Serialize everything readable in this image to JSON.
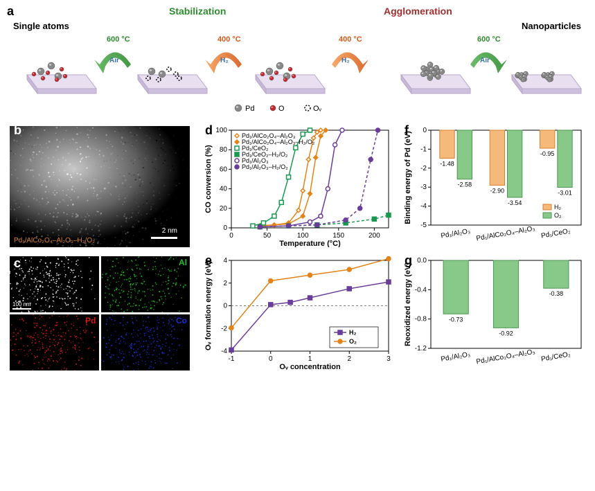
{
  "panel_a": {
    "label": "a",
    "title_stabilization": "Stabilization",
    "title_agglomeration": "Agglomeration",
    "label_single_atoms": "Single atoms",
    "label_nanoparticles": "Nanoparticles",
    "stages": [
      {
        "temp": "600 °C",
        "temp_color": "#2e8b2e",
        "gas": "Air",
        "arrow_gradient": [
          "#5ab45a",
          "#2e8b2e"
        ],
        "dir": "left"
      },
      {
        "temp": "400 °C",
        "temp_color": "#d55a1a",
        "gas": "H₂",
        "arrow_gradient": [
          "#f5a05a",
          "#d55a1a"
        ],
        "dir": "left"
      },
      {
        "temp": "400 °C",
        "temp_color": "#d55a1a",
        "gas": "H₂",
        "arrow_gradient": [
          "#f5a05a",
          "#d55a1a"
        ],
        "dir": "right"
      },
      {
        "temp": "600 °C",
        "temp_color": "#2e8b2e",
        "gas": "Air",
        "arrow_gradient": [
          "#5ab45a",
          "#2e8b2e"
        ],
        "dir": "right"
      }
    ],
    "legend": {
      "pd": "Pd",
      "o": "O",
      "ov": "Oᵥ"
    },
    "platform_fill": "#e8dff0",
    "platform_stroke": "#b8a8c8",
    "atom_pd_color": "#888888",
    "atom_o_color": "#c8262e",
    "atom_ov_stroke": "#000000"
  },
  "panel_b": {
    "label": "b",
    "scale_text": "2 nm",
    "caption": "Pd₁/AlCo₂O₄–Al₂O₃–H₂/O₂"
  },
  "panel_c": {
    "label": "c",
    "scale_text": "100 nm",
    "maps": [
      {
        "tag": "",
        "color": "#ffffff"
      },
      {
        "tag": "Al",
        "color": "#20c020"
      },
      {
        "tag": "Pd",
        "color": "#d01818"
      },
      {
        "tag": "Co",
        "color": "#1830d0"
      }
    ]
  },
  "panel_d": {
    "label": "d",
    "xlabel": "Temperature (°C)",
    "ylabel": "CO conversion (%)",
    "xlim": [
      0,
      220
    ],
    "ylim": [
      0,
      100
    ],
    "xticks": [
      0,
      50,
      100,
      150,
      200
    ],
    "yticks": [
      0,
      20,
      40,
      60,
      80,
      100
    ],
    "series": [
      {
        "name": "Pd₁/AlCo₂O₄–Al₂O₃",
        "color": "#e2841a",
        "marker": "diamond",
        "fill": false,
        "dash": false,
        "x": [
          40,
          60,
          80,
          94,
          100,
          108,
          115,
          120,
          125
        ],
        "y": [
          2,
          3,
          5,
          18,
          38,
          70,
          92,
          98,
          100
        ]
      },
      {
        "name": "Pd₁/AlCo₂O₄–Al₂O₃–H₂/O₂",
        "color": "#e2841a",
        "marker": "diamond",
        "fill": true,
        "dash": false,
        "x": [
          40,
          60,
          80,
          100,
          110,
          118,
          125,
          132
        ],
        "y": [
          2,
          3,
          4,
          12,
          35,
          72,
          94,
          100
        ]
      },
      {
        "name": "Pd₁/CeO₂",
        "color": "#1a9850",
        "marker": "square",
        "fill": false,
        "dash": false,
        "x": [
          30,
          45,
          60,
          70,
          80,
          90,
          100,
          110
        ],
        "y": [
          2,
          5,
          12,
          26,
          52,
          82,
          96,
          100
        ]
      },
      {
        "name": "Pd₁/CeO₂–H₂/O₂",
        "color": "#1a9850",
        "marker": "square",
        "fill": true,
        "dash": true,
        "x": [
          40,
          80,
          120,
          160,
          200,
          220
        ],
        "y": [
          1,
          2,
          3,
          5,
          9,
          13
        ]
      },
      {
        "name": "Pd₁/Al₂O₃",
        "color": "#6a3d9a",
        "marker": "circle",
        "fill": false,
        "dash": false,
        "x": [
          40,
          80,
          110,
          125,
          135,
          145,
          155
        ],
        "y": [
          1,
          2,
          6,
          12,
          40,
          85,
          100
        ]
      },
      {
        "name": "Pd₁/Al₂O₃–H₂/O₂",
        "color": "#6a3d9a",
        "marker": "circle",
        "fill": true,
        "dash": true,
        "x": [
          40,
          80,
          120,
          160,
          180,
          195,
          205
        ],
        "y": [
          1,
          2,
          3,
          8,
          20,
          70,
          100
        ]
      }
    ]
  },
  "panel_e": {
    "label": "e",
    "xlabel": "Oᵥ concentration",
    "ylabel": "Oᵥ formation energy (eV)",
    "xlim": [
      -1,
      3
    ],
    "ylim": [
      -4,
      4
    ],
    "xticks": [
      -1,
      0,
      1,
      2,
      3
    ],
    "yticks": [
      -4,
      -2,
      0,
      2,
      4
    ],
    "zero_line_color": "#808080",
    "series": [
      {
        "name": "H₂",
        "color": "#6a3d9a",
        "marker": "square",
        "x": [
          -1,
          0,
          0.5,
          1,
          2,
          3
        ],
        "y": [
          -3.9,
          0.1,
          0.3,
          0.7,
          1.5,
          2.1
        ]
      },
      {
        "name": "O₂",
        "color": "#e2841a",
        "marker": "circle",
        "x": [
          -1,
          0,
          1,
          2,
          3
        ],
        "y": [
          -1.95,
          2.2,
          2.7,
          3.2,
          4.15
        ]
      }
    ]
  },
  "panel_f": {
    "label": "f",
    "xlabel_items": [
      "Pd₁/Al₂O₃",
      "Pd₁/AlCo₂O₄–Al₂O₃",
      "Pd₁/CeO₂"
    ],
    "ylabel": "Binding energy of Pd (eV)",
    "ylim": [
      -5,
      0
    ],
    "yticks": [
      -5,
      -4,
      -3,
      -2,
      -1,
      0
    ],
    "bar_width": 0.35,
    "legend": {
      "h2": "H₂",
      "o2": "O₂"
    },
    "colors": {
      "h2": "#f5b97a",
      "o2": "#88c888",
      "h2_stroke": "#d88030",
      "o2_stroke": "#4a9850"
    },
    "data": [
      {
        "h2": -1.48,
        "o2": -2.58
      },
      {
        "h2": -2.9,
        "o2": -3.54
      },
      {
        "h2": -0.95,
        "o2": -3.01
      }
    ]
  },
  "panel_g": {
    "label": "g",
    "xlabel_items": [
      "Pd₁/Al₂O₃",
      "Pd₁/AlCo₂O₄–Al₂O₃",
      "Pd₁/CeO₂"
    ],
    "ylabel": "Reoxidized energy (eV)",
    "ylim": [
      -1.2,
      0
    ],
    "yticks": [
      -1.2,
      -0.8,
      -0.4,
      0.0
    ],
    "color": "#88c888",
    "stroke": "#4a9850",
    "data": [
      -0.73,
      -0.92,
      -0.38
    ]
  }
}
